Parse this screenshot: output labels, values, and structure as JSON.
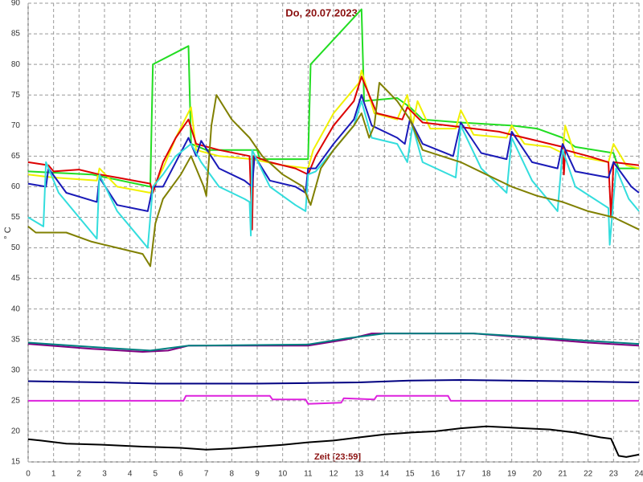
{
  "chart_data": {
    "type": "line",
    "title": "Do, 20.07.2023",
    "x_label": "Zeit [23:59]",
    "y_label": "° C",
    "xlim": [
      0,
      24
    ],
    "ylim": [
      15,
      90
    ],
    "xticks": [
      0,
      1,
      2,
      3,
      4,
      5,
      6,
      7,
      8,
      9,
      10,
      11,
      12,
      13,
      14,
      15,
      16,
      17,
      18,
      19,
      20,
      21,
      22,
      23,
      24
    ],
    "yticks": [
      15,
      20,
      25,
      30,
      35,
      40,
      45,
      50,
      55,
      60,
      65,
      70,
      75,
      80,
      85,
      90
    ],
    "grid": true,
    "series": [
      {
        "color": "#22dd22",
        "x": [
          0,
          2.5,
          4.8,
          4.9,
          6.3,
          6.4,
          7,
          9,
          9.1,
          11,
          11.1,
          13.1,
          13.2,
          14.5,
          15,
          15.5,
          17,
          19,
          20,
          21,
          21.5,
          23,
          23.2,
          24
        ],
        "values": [
          62.5,
          62,
          60,
          80,
          83,
          67,
          66,
          66,
          64.5,
          64.5,
          80,
          89,
          74,
          74.5,
          73,
          71,
          70.5,
          70,
          69.5,
          68,
          66.5,
          65.5,
          63,
          63
        ]
      },
      {
        "color": "#f0f000",
        "x": [
          0,
          1,
          2.7,
          2.8,
          3.5,
          4.8,
          5.3,
          5.8,
          6.4,
          6.6,
          7.5,
          8.8,
          10,
          11,
          11.2,
          12,
          13,
          13.1,
          13.6,
          14.5,
          14.9,
          15.1,
          15.3,
          15.8,
          16.8,
          17,
          17.5,
          18.8,
          19,
          19.5,
          20.5,
          21,
          21.1,
          21.5,
          22.8,
          23,
          23.5,
          24
        ],
        "values": [
          62,
          61.5,
          61,
          63,
          60,
          59,
          63,
          68,
          73,
          66,
          65,
          64.5,
          63.5,
          63,
          66,
          72,
          77,
          79,
          72,
          71,
          75,
          70,
          74,
          69.5,
          69.5,
          72.5,
          68.5,
          68,
          70,
          67,
          66.5,
          65.5,
          70,
          65,
          64,
          67,
          63.5,
          63
        ]
      },
      {
        "color": "#dd0000",
        "x": [
          0,
          0.8,
          1,
          2,
          2.8,
          3.5,
          4.8,
          4.9,
          5.3,
          5.8,
          6.3,
          6.6,
          7.5,
          8.7,
          8.8,
          8.85,
          9.5,
          10.5,
          11,
          11.3,
          12,
          12.8,
          13.1,
          13.7,
          14.7,
          14.9,
          15.5,
          16.5,
          17.5,
          18.5,
          19.5,
          20.5,
          21,
          21.05,
          21.1,
          22,
          22.8,
          22.9,
          23,
          24
        ],
        "values": [
          64,
          63.5,
          62.5,
          62.8,
          62,
          61.5,
          60.5,
          59,
          64,
          68,
          71,
          67,
          66,
          65,
          53,
          65,
          64,
          63,
          62,
          65,
          70,
          74,
          78,
          72,
          71,
          73,
          70.5,
          70,
          69.5,
          69,
          68,
          67,
          66.5,
          62,
          66,
          65,
          64,
          55,
          64,
          63.5
        ]
      },
      {
        "color": "#1a1ab8",
        "x": [
          0,
          0.7,
          0.8,
          1.5,
          2.7,
          2.8,
          3.5,
          4.7,
          4.9,
          5.3,
          5.8,
          6.3,
          6.6,
          6.8,
          7.5,
          8.5,
          8.8,
          8.9,
          9.5,
          10.5,
          10.9,
          11,
          11.3,
          12,
          12.8,
          13.1,
          13.5,
          14.5,
          14.8,
          15,
          15.5,
          16.7,
          17,
          17.8,
          18.8,
          19,
          19.8,
          20.8,
          21,
          21.5,
          22.8,
          23,
          23.7,
          24
        ],
        "values": [
          60.5,
          60,
          63,
          59,
          57.5,
          61.5,
          57,
          56,
          60,
          60,
          64,
          68,
          65,
          67.5,
          63,
          61,
          60,
          65,
          61,
          60,
          59,
          63,
          63,
          67,
          71,
          75,
          70,
          68,
          67,
          71,
          67,
          65,
          70.5,
          65.5,
          64.5,
          69,
          64,
          63,
          67,
          62.5,
          61.5,
          64,
          60,
          59
        ]
      },
      {
        "color": "#33dddd",
        "x": [
          0,
          0.6,
          0.7,
          1.2,
          2,
          2.7,
          2.8,
          3.5,
          4.3,
          4.7,
          4.9,
          5.3,
          5.8,
          6.4,
          6.8,
          7.5,
          8.5,
          8.7,
          8.75,
          8.8,
          9.5,
          10.5,
          10.9,
          11,
          11.3,
          12,
          12.8,
          13.1,
          13.5,
          14.5,
          14.9,
          15.1,
          15.5,
          16.8,
          17,
          17.8,
          18.8,
          19,
          19.8,
          20.8,
          21,
          21.5,
          22.8,
          22.85,
          23.1,
          23.6,
          24
        ],
        "values": [
          55,
          53.5,
          64,
          59,
          55,
          51.5,
          62,
          56,
          52,
          50,
          60,
          62,
          65,
          67,
          64,
          60,
          58,
          57.5,
          52,
          66,
          60,
          57,
          56,
          62,
          62.5,
          66,
          70,
          74,
          68,
          67,
          64,
          70,
          64,
          61.5,
          70,
          63,
          59,
          68,
          61,
          56,
          66,
          60,
          56.5,
          50.5,
          63,
          58,
          56
        ]
      },
      {
        "color": "#808000",
        "x": [
          0,
          0.3,
          1.5,
          2.5,
          3.5,
          4.5,
          4.8,
          5,
          5.3,
          6,
          6.4,
          6.9,
          7,
          7.2,
          7.4,
          8,
          8.7,
          9.2,
          10,
          10.8,
          11.1,
          11.5,
          12,
          12.8,
          13.1,
          13.4,
          13.6,
          13.8,
          14.5,
          15,
          15.5,
          17,
          18,
          19,
          20,
          21,
          22,
          23,
          24
        ],
        "values": [
          53.5,
          52.5,
          52.5,
          51,
          50,
          49,
          47,
          54,
          58,
          62,
          65,
          60,
          58.5,
          70,
          75,
          71,
          68,
          65,
          62,
          60,
          57,
          63,
          66,
          70,
          72,
          68,
          70,
          77,
          74,
          71,
          66,
          64,
          62,
          60,
          58.5,
          57.5,
          56,
          55,
          53
        ]
      },
      {
        "color": "#800080",
        "x": [
          0,
          2.5,
          4.5,
          5.5,
          6.3,
          11,
          12.5,
          13.5,
          17.5,
          19,
          20.5,
          22,
          24
        ],
        "values": [
          34.3,
          33.5,
          33,
          33.2,
          34,
          34,
          35,
          36,
          36,
          35.5,
          35,
          34.5,
          34
        ]
      },
      {
        "color": "#008080",
        "x": [
          0,
          2.5,
          4.8,
          6.3,
          11,
          12.5,
          14,
          17.5,
          19.5,
          22,
          24
        ],
        "values": [
          34.5,
          33.8,
          33.2,
          34,
          34.2,
          35.2,
          36,
          36,
          35.5,
          34.8,
          34.3
        ]
      },
      {
        "color": "#000080",
        "x": [
          0,
          3,
          5,
          9,
          11,
          13,
          15,
          17,
          21,
          24
        ],
        "values": [
          28.2,
          28,
          27.8,
          27.8,
          27.9,
          28,
          28.3,
          28.4,
          28.2,
          28
        ]
      },
      {
        "color": "#dd22dd",
        "x": [
          0,
          6.1,
          6.2,
          9.5,
          9.6,
          10.9,
          11,
          12.3,
          12.4,
          13.6,
          13.7,
          16.5,
          16.6,
          24
        ],
        "values": [
          25,
          25,
          25.8,
          25.8,
          25.2,
          25.2,
          24.5,
          24.7,
          25.4,
          25.2,
          25.8,
          25.8,
          25,
          25
        ]
      },
      {
        "color": "#000000",
        "x": [
          0,
          0.5,
          1.5,
          3,
          4.5,
          6,
          7,
          8,
          9,
          10,
          11,
          12,
          13,
          14,
          15,
          16,
          17,
          18,
          19.5,
          20.5,
          21.5,
          22.5,
          22.9,
          23.2,
          23.5,
          24
        ],
        "values": [
          18.7,
          18.5,
          18,
          17.8,
          17.5,
          17.3,
          17,
          17.2,
          17.5,
          17.8,
          18.2,
          18.5,
          19,
          19.5,
          19.8,
          20,
          20.5,
          20.8,
          20.5,
          20.3,
          19.8,
          19,
          18.8,
          16,
          15.8,
          16.2
        ]
      }
    ]
  }
}
